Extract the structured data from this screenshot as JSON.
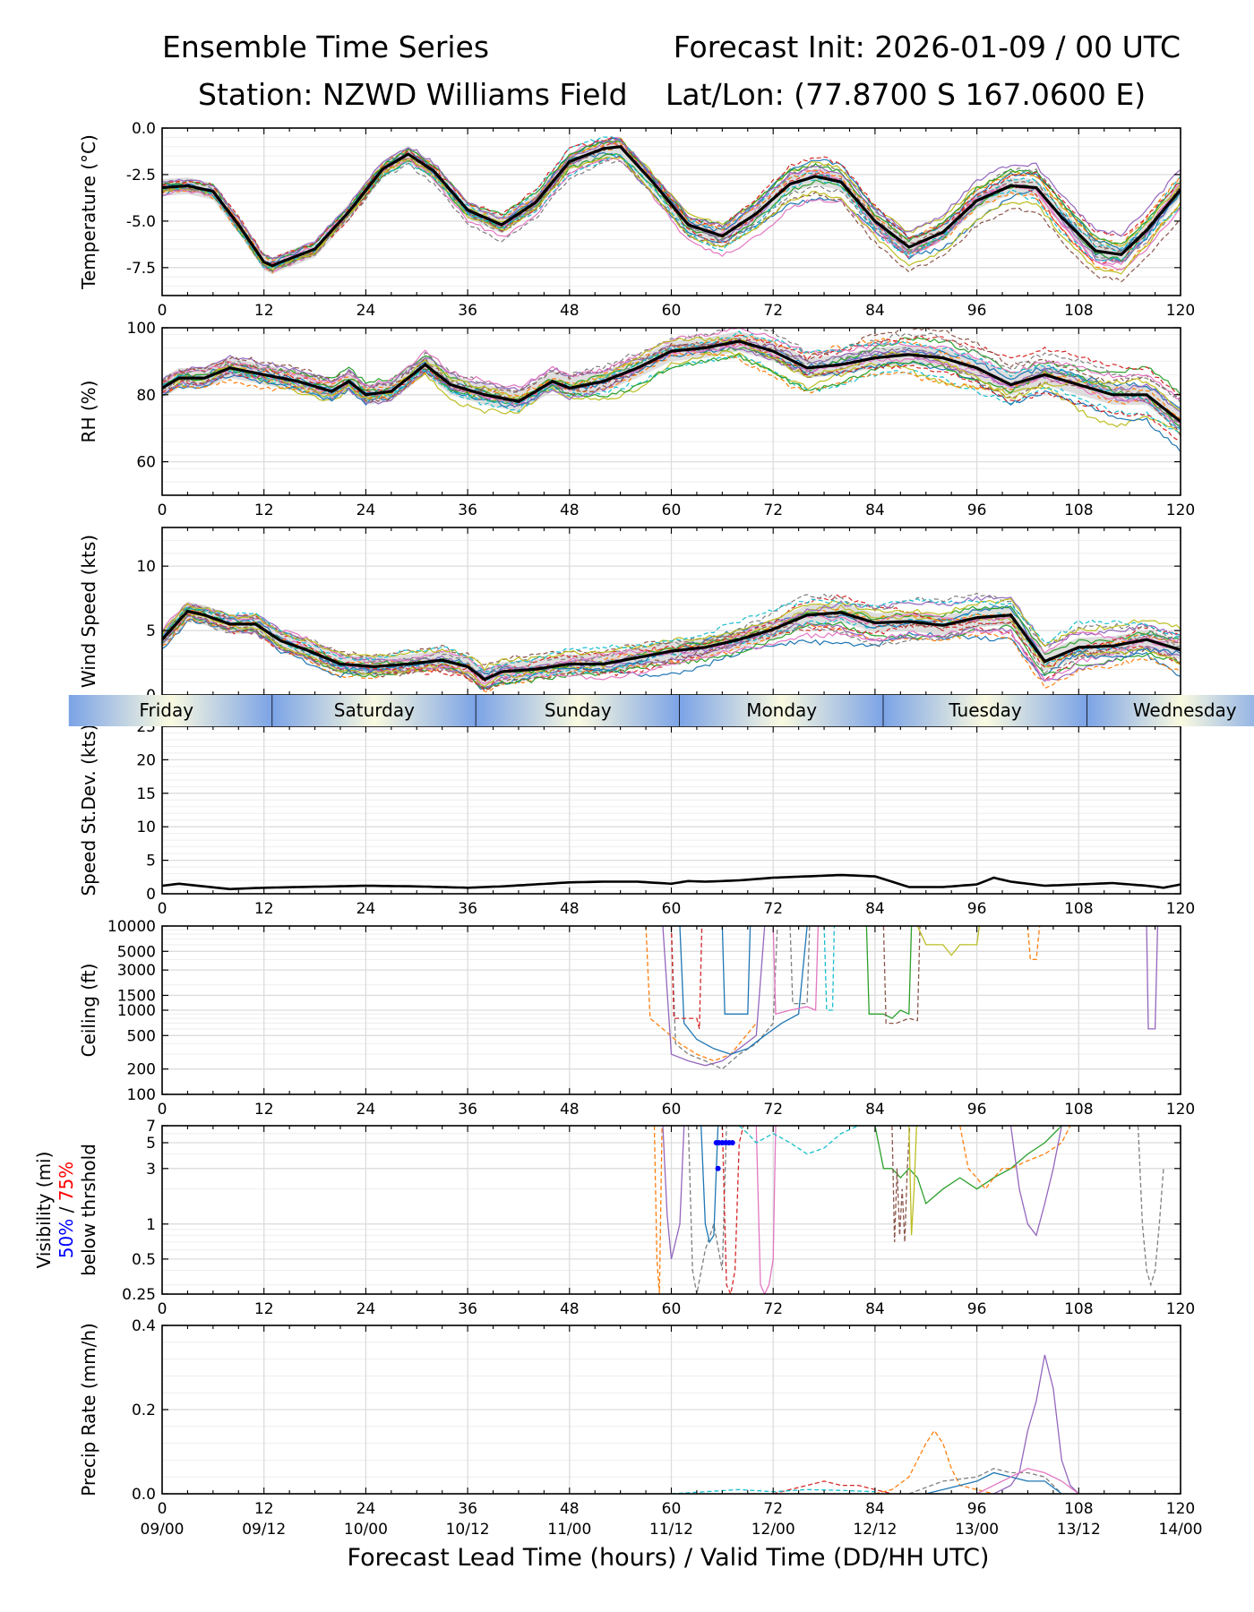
{
  "title": {
    "line1_left": "Ensemble Time Series",
    "line1_right": "Forecast Init: 2026-01-09 / 00 UTC",
    "line2_left": "Station: NZWD Williams Field",
    "line2_right": "Lat/Lon: (77.8700 S 167.0600 E)"
  },
  "x_axis_label": "Forecast Lead Time (hours) / Valid Time (DD/HH UTC)",
  "x_ticks": [
    "0",
    "12",
    "24",
    "36",
    "48",
    "60",
    "72",
    "84",
    "96",
    "108",
    "120"
  ],
  "valid_time_ticks": [
    "09/00",
    "09/12",
    "10/00",
    "10/12",
    "11/00",
    "11/12",
    "12/00",
    "12/12",
    "13/00",
    "13/12",
    "14/00"
  ],
  "day_bar": [
    {
      "label": "Friday",
      "start": 0,
      "end": 13
    },
    {
      "label": "Saturday",
      "start": 13,
      "end": 37
    },
    {
      "label": "Sunday",
      "start": 37,
      "end": 61
    },
    {
      "label": "Monday",
      "start": 61,
      "end": 85
    },
    {
      "label": "Tuesday",
      "start": 85,
      "end": 109
    },
    {
      "label": "Wednesday",
      "start": 109,
      "end": 120
    }
  ],
  "visibility_legend": {
    "line1": "Visibility (mi)",
    "pct50": "50%",
    "sep": " / ",
    "pct75": "75%",
    "line3": "below thrshold"
  },
  "colors": {
    "mean": "#000000",
    "spread_fill": "#d3d3d3",
    "members": [
      "#1f77b4",
      "#ff7f0e",
      "#2ca02c",
      "#d62728",
      "#9467bd",
      "#8c564b",
      "#e377c2",
      "#7f7f7f",
      "#bcbd22",
      "#17becf"
    ],
    "vis50": "#0000ff",
    "vis75": "#ff0000",
    "day_mid": "#fafae0",
    "day_edge": "#7ba3e6"
  },
  "chart_data": [
    {
      "type": "line",
      "id": "temperature",
      "ylabel": "Temperature (°C)",
      "xlim": [
        0,
        120
      ],
      "ylim": [
        -9.0,
        0.0
      ],
      "yticks": [
        0.0,
        -2.5,
        -5.0,
        -7.5
      ],
      "ytick_labels": [
        "0.0",
        "-2.5",
        "-5.0",
        "-7.5"
      ],
      "ensemble_mean": {
        "x": [
          0,
          3,
          6,
          9,
          12,
          13,
          14,
          18,
          22,
          26,
          29,
          32,
          36,
          40,
          44,
          48,
          52,
          54,
          58,
          62,
          66,
          70,
          74,
          77,
          80,
          84,
          88,
          92,
          96,
          100,
          103,
          106,
          110,
          113,
          116,
          120
        ],
        "y": [
          -3.2,
          -3.1,
          -3.4,
          -5.2,
          -7.2,
          -7.4,
          -7.2,
          -6.5,
          -4.5,
          -2.2,
          -1.4,
          -2.3,
          -4.4,
          -5.2,
          -4.0,
          -1.8,
          -1.1,
          -1.0,
          -3.0,
          -5.2,
          -5.8,
          -4.6,
          -3.0,
          -2.6,
          -2.9,
          -5.0,
          -6.4,
          -5.6,
          -3.9,
          -3.1,
          -3.2,
          -4.8,
          -6.6,
          -6.8,
          -5.5,
          -3.3
        ]
      },
      "members": 20,
      "member_spread": 0.9
    },
    {
      "type": "line",
      "id": "rh",
      "ylabel": "RH (%)",
      "xlim": [
        0,
        120
      ],
      "ylim": [
        50,
        100
      ],
      "yticks": [
        100,
        80,
        60
      ],
      "ytick_labels": [
        "100",
        "80",
        "60"
      ],
      "ensemble_mean": {
        "x": [
          0,
          2,
          5,
          8,
          12,
          16,
          20,
          22,
          24,
          27,
          31,
          34,
          38,
          42,
          46,
          48,
          52,
          56,
          60,
          64,
          68,
          72,
          76,
          80,
          84,
          88,
          92,
          96,
          100,
          104,
          108,
          112,
          116,
          120
        ],
        "y": [
          82,
          85,
          85,
          88,
          86,
          84,
          81,
          84,
          80,
          81,
          89,
          83,
          80,
          78,
          84,
          82,
          84,
          88,
          93,
          94,
          96,
          93,
          88,
          89,
          91,
          92,
          91,
          88,
          83,
          86,
          83,
          80,
          80,
          72
        ]
      },
      "members": 20,
      "member_spread": 6
    },
    {
      "type": "line",
      "id": "wind_speed",
      "ylabel": "Wind Speed (kts)",
      "xlim": [
        0,
        120
      ],
      "ylim": [
        0,
        13
      ],
      "yticks": [
        0,
        5,
        10
      ],
      "ytick_labels": [
        "0",
        "5",
        "10"
      ],
      "ensemble_mean": {
        "x": [
          0,
          3,
          5,
          8,
          11,
          14,
          17,
          21,
          25,
          29,
          33,
          36,
          38,
          40,
          44,
          48,
          52,
          56,
          60,
          64,
          68,
          72,
          76,
          80,
          84,
          88,
          92,
          96,
          100,
          104,
          108,
          112,
          116,
          120
        ],
        "y": [
          4.3,
          6.5,
          6.2,
          5.5,
          5.5,
          4.2,
          3.5,
          2.4,
          2.2,
          2.4,
          2.7,
          2.2,
          1.2,
          1.8,
          2.0,
          2.4,
          2.4,
          2.9,
          3.4,
          3.7,
          4.3,
          5.1,
          6.2,
          6.4,
          5.6,
          5.7,
          5.4,
          6.0,
          6.2,
          2.6,
          3.7,
          3.8,
          4.3,
          3.5
        ]
      },
      "members": 20,
      "member_spread": 1.5
    },
    {
      "type": "line",
      "id": "speed_stdev",
      "ylabel": "Speed St.Dev. (kts)",
      "xlim": [
        0,
        120
      ],
      "ylim": [
        0,
        25
      ],
      "yticks": [
        0,
        5,
        10,
        15,
        20,
        25
      ],
      "ytick_labels": [
        "0",
        "5",
        "10",
        "15",
        "20",
        "25"
      ],
      "ensemble_mean": {
        "x": [
          0,
          2,
          5,
          8,
          12,
          16,
          20,
          24,
          30,
          36,
          40,
          44,
          48,
          52,
          56,
          60,
          62,
          64,
          68,
          72,
          76,
          80,
          84,
          88,
          92,
          96,
          98,
          100,
          104,
          108,
          112,
          116,
          118,
          120
        ],
        "y": [
          1.2,
          1.5,
          1.1,
          0.7,
          0.9,
          1.0,
          1.1,
          1.2,
          1.1,
          0.9,
          1.1,
          1.4,
          1.7,
          1.8,
          1.8,
          1.5,
          1.9,
          1.8,
          2.0,
          2.4,
          2.6,
          2.8,
          2.6,
          1.0,
          1.0,
          1.4,
          2.4,
          1.8,
          1.2,
          1.4,
          1.6,
          1.2,
          0.9,
          1.4
        ]
      }
    },
    {
      "type": "line",
      "id": "ceiling",
      "ylabel": "Ceiling (ft)",
      "xlim": [
        0,
        120
      ],
      "ylim": [
        100,
        10000
      ],
      "scale": "log",
      "yticks": [
        10000,
        5000,
        3000,
        1500,
        1000,
        500,
        200,
        100
      ],
      "ytick_labels": [
        "10000",
        "5000",
        "3000",
        "1500",
        "1000",
        "500",
        "200",
        "100"
      ],
      "members": [
        {
          "x": [
            57,
            57.5,
            59,
            61,
            63,
            65,
            67,
            70
          ],
          "y": [
            10000,
            800,
            600,
            400,
            300,
            250,
            300,
            700
          ]
        },
        {
          "x": [
            59,
            60,
            62,
            64,
            66,
            68,
            70,
            71
          ],
          "y": [
            10000,
            300,
            250,
            220,
            250,
            350,
            500,
            10000
          ]
        },
        {
          "x": [
            60,
            60.5,
            62,
            64,
            66,
            68,
            70,
            72,
            72.5
          ],
          "y": [
            10000,
            400,
            300,
            250,
            200,
            300,
            400,
            700,
            10000
          ]
        },
        {
          "x": [
            61,
            61.5,
            63,
            65,
            67,
            69,
            71,
            73,
            75,
            76
          ],
          "y": [
            10000,
            700,
            450,
            350,
            300,
            350,
            500,
            700,
            900,
            10000
          ]
        },
        {
          "x": [
            60,
            60.3,
            63,
            63.3,
            63.6
          ],
          "y": [
            10000,
            800,
            800,
            600,
            10000
          ]
        },
        {
          "x": [
            72,
            72.3,
            74,
            76,
            77,
            77.3
          ],
          "y": [
            10000,
            900,
            1000,
            1100,
            1000,
            10000
          ]
        },
        {
          "x": [
            78,
            78.3,
            79,
            79.2
          ],
          "y": [
            10000,
            1000,
            1000,
            10000
          ]
        },
        {
          "x": [
            83,
            83.3,
            85,
            86,
            87,
            88,
            88.3
          ],
          "y": [
            10000,
            900,
            900,
            800,
            1000,
            900,
            10000
          ]
        },
        {
          "x": [
            85,
            85.3,
            86.5,
            88,
            89,
            89.3
          ],
          "y": [
            10000,
            700,
            700,
            800,
            750,
            10000
          ]
        },
        {
          "x": [
            89,
            90,
            92,
            93,
            94,
            95,
            96,
            96.3
          ],
          "y": [
            10000,
            6000,
            6000,
            4500,
            6000,
            6000,
            6000,
            10000
          ]
        },
        {
          "x": [
            102,
            102.3,
            103,
            103.4
          ],
          "y": [
            10000,
            4000,
            4000,
            10000
          ]
        },
        {
          "x": [
            116,
            116.2,
            117,
            117.3
          ],
          "y": [
            10000,
            600,
            600,
            10000
          ]
        },
        {
          "x": [
            74,
            74.3,
            76,
            76.3
          ],
          "y": [
            10000,
            1200,
            1200,
            10000
          ]
        },
        {
          "x": [
            66,
            66.3,
            69,
            69.3
          ],
          "y": [
            10000,
            900,
            900,
            10000
          ]
        }
      ]
    },
    {
      "type": "line",
      "id": "visibility",
      "ylabel": "Visibility (mi)",
      "xlim": [
        0,
        120
      ],
      "ylim": [
        0.25,
        7
      ],
      "scale": "log",
      "yticks": [
        7,
        5,
        3,
        1,
        0.5,
        0.25
      ],
      "ytick_labels": [
        "7",
        "5",
        "3",
        "1",
        "0.5",
        "0.25"
      ],
      "members": [
        {
          "x": [
            58,
            58.3,
            58.6,
            58.9
          ],
          "y": [
            7,
            0.5,
            0.25,
            7
          ]
        },
        {
          "x": [
            59,
            59.5,
            60,
            61,
            61.5
          ],
          "y": [
            7,
            1.2,
            0.5,
            1.0,
            7
          ]
        },
        {
          "x": [
            62,
            62.5,
            63,
            64,
            65,
            66,
            66.5
          ],
          "y": [
            7,
            0.4,
            0.25,
            0.6,
            1.0,
            0.4,
            7
          ]
        },
        {
          "x": [
            63.5,
            64,
            64.5,
            65,
            65.5
          ],
          "y": [
            7,
            1,
            0.7,
            0.8,
            7
          ]
        },
        {
          "x": [
            66,
            66.5,
            67,
            67.5,
            68,
            68.5
          ],
          "y": [
            7,
            0.3,
            0.25,
            0.4,
            5,
            7
          ]
        },
        {
          "x": [
            70,
            70.5,
            71,
            71.5,
            72,
            72.3
          ],
          "y": [
            7,
            0.3,
            0.25,
            0.3,
            0.5,
            7
          ]
        },
        {
          "x": [
            68,
            69,
            70,
            72,
            74,
            76,
            78,
            80,
            82
          ],
          "y": [
            7,
            6,
            5,
            6,
            5,
            4,
            4.5,
            6,
            7
          ]
        },
        {
          "x": [
            84,
            85,
            86,
            87,
            88,
            89,
            90,
            92,
            94,
            96,
            98,
            100,
            102,
            104,
            106
          ],
          "y": [
            7,
            3,
            3,
            2.5,
            3,
            2.5,
            1.5,
            2,
            2.5,
            2,
            2.5,
            3,
            4,
            5,
            7
          ]
        },
        {
          "x": [
            86,
            86.3,
            86.6,
            86.9,
            87.2,
            87.5,
            87.8,
            88.1
          ],
          "y": [
            7,
            0.7,
            3,
            0.8,
            2,
            0.7,
            3,
            7
          ]
        },
        {
          "x": [
            88,
            88.3,
            88.6,
            88.9
          ],
          "y": [
            7,
            0.8,
            2,
            7
          ]
        },
        {
          "x": [
            94,
            95,
            96,
            97,
            98,
            99,
            100,
            102,
            104,
            106,
            107
          ],
          "y": [
            7,
            3,
            2.5,
            2,
            2.5,
            3,
            3,
            3.5,
            4,
            5,
            7
          ]
        },
        {
          "x": [
            100,
            101,
            102,
            103,
            104,
            105,
            106
          ],
          "y": [
            7,
            2,
            1,
            0.8,
            1.5,
            3,
            7
          ]
        },
        {
          "x": [
            115,
            115.5,
            116,
            116.5,
            117,
            117.5,
            118
          ],
          "y": [
            7,
            1,
            0.4,
            0.3,
            0.4,
            1,
            3
          ]
        }
      ],
      "pct50_points": {
        "x": [
          65.3,
          65.6,
          66,
          66.4,
          66.8,
          67.2,
          65.5
        ],
        "y": [
          5,
          5,
          5,
          5,
          5,
          5,
          3
        ]
      },
      "pct75_points": {
        "x": [],
        "y": []
      }
    },
    {
      "type": "line",
      "id": "precip_rate",
      "ylabel": "Precip Rate (mm/h)",
      "xlim": [
        0,
        120
      ],
      "ylim": [
        0.0,
        0.4
      ],
      "yticks": [
        0.0,
        0.2,
        0.4
      ],
      "ytick_labels": [
        "0.0",
        "0.2",
        "0.4"
      ],
      "members": [
        {
          "x": [
            84,
            86,
            88,
            90,
            91,
            92,
            93,
            94,
            96,
            98
          ],
          "y": [
            0,
            0.01,
            0.04,
            0.12,
            0.15,
            0.12,
            0.06,
            0.02,
            0.01,
            0
          ]
        },
        {
          "x": [
            98,
            100,
            101,
            102,
            103,
            104,
            105,
            106,
            107,
            108
          ],
          "y": [
            0,
            0.02,
            0.05,
            0.15,
            0.22,
            0.33,
            0.25,
            0.08,
            0.02,
            0
          ]
        },
        {
          "x": [
            88,
            92,
            96,
            98,
            100,
            102,
            104,
            106
          ],
          "y": [
            0,
            0.03,
            0.04,
            0.06,
            0.05,
            0.05,
            0.04,
            0
          ]
        },
        {
          "x": [
            90,
            94,
            96,
            98,
            100,
            102,
            104,
            106
          ],
          "y": [
            0,
            0.02,
            0.03,
            0.05,
            0.04,
            0.03,
            0.03,
            0
          ]
        },
        {
          "x": [
            72,
            74,
            76,
            78,
            80,
            82,
            84,
            86
          ],
          "y": [
            0,
            0.01,
            0.02,
            0.03,
            0.02,
            0.02,
            0.01,
            0
          ]
        },
        {
          "x": [
            96,
            98,
            100,
            102,
            104,
            106,
            108
          ],
          "y": [
            0,
            0.02,
            0.04,
            0.06,
            0.05,
            0.03,
            0
          ]
        },
        {
          "x": [
            60,
            64,
            68,
            72,
            76,
            80,
            84
          ],
          "y": [
            0,
            0.005,
            0.01,
            0.005,
            0.01,
            0.008,
            0.005
          ]
        }
      ]
    }
  ]
}
